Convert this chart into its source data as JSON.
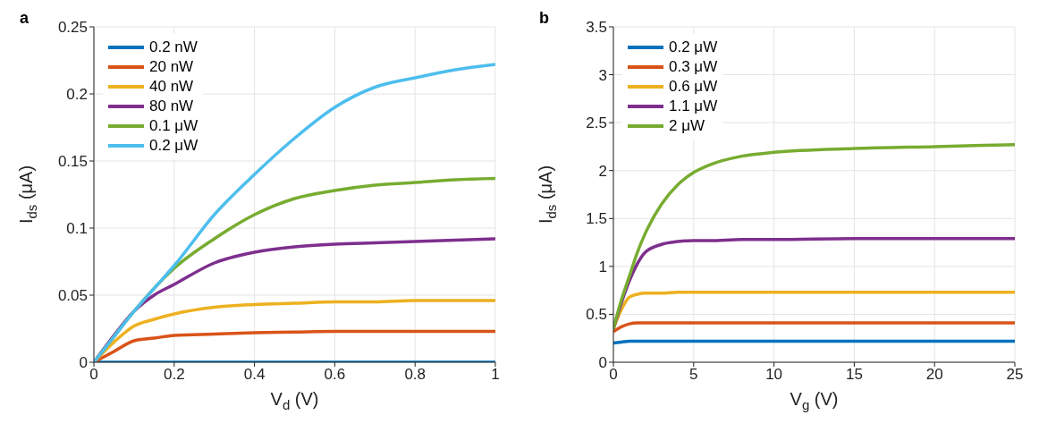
{
  "chart_data": [
    {
      "type": "line",
      "title": "a",
      "xlabel": "V$_{d}$ (V)",
      "ylabel": "I$_{ds}$ (μA)",
      "xlim": [
        0,
        1
      ],
      "xticks": [
        0,
        0.2,
        0.4,
        0.6,
        0.8,
        1
      ],
      "ylim": [
        0,
        0.25
      ],
      "yticks": [
        0,
        0.05,
        0.1,
        0.15,
        0.2,
        0.25
      ],
      "grid": true,
      "legend": "top left",
      "marker": "none",
      "line_style": "solid",
      "x": [
        0,
        0.05,
        0.1,
        0.15,
        0.2,
        0.3,
        0.4,
        0.5,
        0.6,
        0.7,
        0.8,
        0.9,
        1
      ],
      "series": [
        {
          "name": "0.2 nW",
          "color": "#0072bd",
          "values": [
            0,
            0,
            0,
            0,
            0,
            0,
            0,
            0,
            0,
            0,
            0,
            0,
            0
          ]
        },
        {
          "name": "20 nW",
          "color": "#d95319",
          "values": [
            0,
            0.008,
            0.016,
            0.018,
            0.02,
            0.021,
            0.022,
            0.0225,
            0.023,
            0.023,
            0.023,
            0.023,
            0.023
          ]
        },
        {
          "name": "40 nW",
          "color": "#edb120",
          "values": [
            0,
            0.015,
            0.027,
            0.032,
            0.036,
            0.041,
            0.043,
            0.044,
            0.045,
            0.045,
            0.046,
            0.046,
            0.046
          ]
        },
        {
          "name": "80 nW",
          "color": "#7e2f8e",
          "values": [
            0,
            0.02,
            0.038,
            0.05,
            0.058,
            0.074,
            0.082,
            0.086,
            0.088,
            0.089,
            0.09,
            0.091,
            0.092
          ]
        },
        {
          "name": "0.1 μW",
          "color": "#77ac30",
          "values": [
            0,
            0.019,
            0.038,
            null,
            0.07,
            0.092,
            0.11,
            0.122,
            0.128,
            0.132,
            0.134,
            0.136,
            0.137
          ]
        },
        {
          "name": "0.2 μW",
          "color": "#4dbeee",
          "values": [
            0,
            0.019,
            0.038,
            0.055,
            0.072,
            0.11,
            0.14,
            0.167,
            0.19,
            0.205,
            0.212,
            0.218,
            0.222
          ]
        }
      ]
    },
    {
      "type": "line",
      "title": "b",
      "xlabel": "V$_{g}$ (V)",
      "ylabel": "I$_{ds}$ (μA)",
      "xlim": [
        0,
        25
      ],
      "xticks": [
        0,
        5,
        10,
        15,
        20,
        25
      ],
      "ylim": [
        0,
        3.5
      ],
      "yticks": [
        0,
        0.5,
        1,
        1.5,
        2,
        2.5,
        3,
        3.5
      ],
      "grid": true,
      "legend": "top left",
      "marker": "none",
      "line_style": "solid",
      "x": [
        0,
        0.5,
        1,
        1.5,
        2,
        3,
        4,
        5,
        6,
        8,
        10,
        15,
        20,
        25
      ],
      "series": [
        {
          "name": "0.2 μW",
          "color": "#0072bd",
          "values": [
            0.2,
            0.21,
            0.22,
            0.22,
            0.22,
            0.22,
            0.22,
            0.22,
            0.22,
            0.22,
            0.22,
            0.22,
            0.22,
            0.22
          ]
        },
        {
          "name": "0.3 μW",
          "color": "#d95319",
          "values": [
            0.32,
            0.37,
            0.4,
            0.41,
            0.41,
            0.41,
            0.41,
            0.41,
            0.41,
            0.41,
            0.41,
            0.41,
            0.41,
            0.41
          ]
        },
        {
          "name": "0.6 μW",
          "color": "#edb120",
          "values": [
            0.35,
            0.55,
            0.68,
            0.71,
            0.72,
            0.72,
            0.73,
            0.73,
            0.73,
            0.73,
            0.73,
            0.73,
            0.73,
            0.73
          ]
        },
        {
          "name": "1.1 μW",
          "color": "#7e2f8e",
          "values": [
            0.35,
            0.62,
            0.85,
            1.03,
            1.15,
            1.23,
            1.26,
            1.27,
            1.27,
            1.28,
            1.28,
            1.29,
            1.29,
            1.29
          ]
        },
        {
          "name": "2 μW",
          "color": "#77ac30",
          "values": [
            0.35,
            0.65,
            0.9,
            1.15,
            1.35,
            1.65,
            1.85,
            1.98,
            2.06,
            2.15,
            2.19,
            2.23,
            2.25,
            2.27
          ]
        }
      ]
    }
  ]
}
